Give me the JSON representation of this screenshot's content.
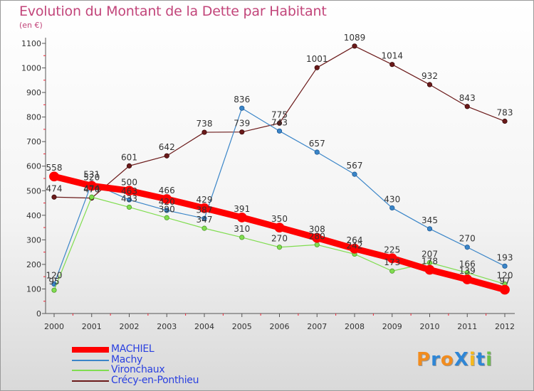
{
  "title": "Evolution du Montant de la Dette par Habitant",
  "unit_label": "(en €)",
  "logo": {
    "text": "ProXiti",
    "letter_colors": [
      "#f28c1e",
      "#2e86d6",
      "#f28c1e",
      "#2e86d6",
      "#f5b81e",
      "#2e86d6",
      "#6cc24a"
    ]
  },
  "chart_data": {
    "type": "line",
    "title": "Evolution du Montant de la Dette par Habitant",
    "ylabel": "(en €)",
    "xlabel": "",
    "ylim": [
      0,
      1100
    ],
    "yticks": [
      0,
      100,
      200,
      300,
      400,
      500,
      600,
      700,
      800,
      900,
      1000,
      1100
    ],
    "x": [
      "2000",
      "2001",
      "2002",
      "2003",
      "2004",
      "2005",
      "2006",
      "2007",
      "2008",
      "2009",
      "2010",
      "2011",
      "2012"
    ],
    "grid": false,
    "legend_position": "bottom-left",
    "series": [
      {
        "name": "MACHIEL",
        "color": "#ff0000",
        "values": [
          558,
          520,
          500,
          466,
          429,
          391,
          350,
          308,
          264,
          225,
          178,
          139,
          97
        ]
      },
      {
        "name": "Machy",
        "color": "#3a85c8",
        "values": [
          120,
          531,
          463,
          420,
          387,
          836,
          743,
          657,
          567,
          430,
          345,
          270,
          193
        ]
      },
      {
        "name": "Vironchaux",
        "color": "#80dd50",
        "values": [
          95,
          474,
          433,
          390,
          347,
          310,
          270,
          280,
          242,
          173,
          207,
          166,
          120
        ]
      },
      {
        "name": "Crécy-en-Ponthieu",
        "color": "#6b1a1a",
        "values": [
          474,
          470,
          601,
          642,
          738,
          739,
          775,
          1001,
          1089,
          1014,
          932,
          843,
          783
        ]
      }
    ],
    "data_labels": [
      [
        "558",
        "520",
        "500",
        "466",
        "429",
        "391",
        "350",
        "308",
        "264",
        "225",
        "178",
        "139",
        "97"
      ],
      [
        "120",
        "531",
        "463",
        "420",
        "387",
        "836",
        "743",
        "657",
        "567",
        "430",
        "345",
        "270",
        "193"
      ],
      [
        "95",
        "474",
        "433",
        "390",
        "347",
        "310",
        "270",
        "280",
        "242",
        "173",
        "207",
        "166",
        "120"
      ],
      [
        "474",
        "470",
        "601",
        "642",
        "738",
        "739",
        "775",
        "1001",
        "1089",
        "1014",
        "932",
        "843",
        "783"
      ]
    ]
  }
}
